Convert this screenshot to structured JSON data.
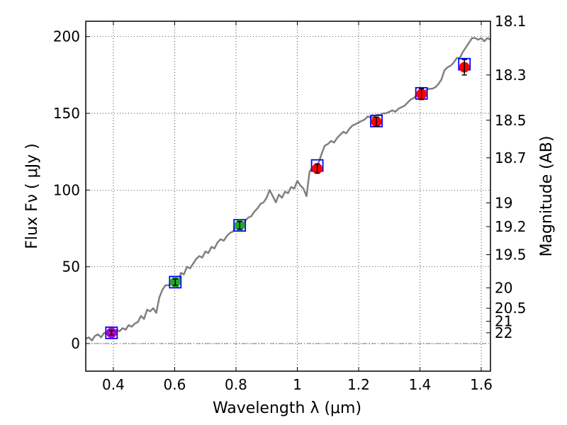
{
  "chart_data": {
    "type": "scatter",
    "title": "",
    "xlabel": "Wavelength  λ (μm)",
    "ylabel": "Flux  Fν  ( μJy )",
    "ylabel_right": "Magnitude (AB)",
    "xlim": [
      0.31,
      1.63
    ],
    "ylim": [
      -18,
      210
    ],
    "grid": true,
    "x_ticks": [
      0.4,
      0.6,
      0.8,
      1.0,
      1.2,
      1.4,
      1.6
    ],
    "x_tick_labels": [
      "0.4",
      "0.6",
      "0.8",
      "1",
      "1.2",
      "1.4",
      "1.6"
    ],
    "y_ticks": [
      0,
      50,
      100,
      150,
      200
    ],
    "y_tick_labels": [
      "0",
      "50",
      "100",
      "150",
      "200"
    ],
    "magnitude_ticks": [
      {
        "label": "18.1",
        "flux": 210
      },
      {
        "label": "18.3",
        "flux": 175
      },
      {
        "label": "18.5",
        "flux": 145.5
      },
      {
        "label": "18.7",
        "flux": 121
      },
      {
        "label": "19",
        "flux": 91.7
      },
      {
        "label": "19.2",
        "flux": 76.2
      },
      {
        "label": "19.5",
        "flux": 57.9
      },
      {
        "label": "20",
        "flux": 36.3
      },
      {
        "label": "20.5",
        "flux": 23
      },
      {
        "label": "21",
        "flux": 14.5
      },
      {
        "label": "22",
        "flux": 7
      }
    ],
    "zero_line": {
      "y": 0,
      "style": "dash-dot"
    },
    "series": [
      {
        "name": "model spectrum",
        "type": "line",
        "color": "#808080",
        "points": [
          [
            0.31,
            3
          ],
          [
            0.32,
            4
          ],
          [
            0.33,
            2
          ],
          [
            0.34,
            5
          ],
          [
            0.35,
            6
          ],
          [
            0.36,
            4
          ],
          [
            0.37,
            7
          ],
          [
            0.38,
            6
          ],
          [
            0.39,
            8
          ],
          [
            0.4,
            7
          ],
          [
            0.41,
            9
          ],
          [
            0.42,
            8
          ],
          [
            0.43,
            10
          ],
          [
            0.44,
            9
          ],
          [
            0.45,
            12
          ],
          [
            0.46,
            11
          ],
          [
            0.47,
            13
          ],
          [
            0.48,
            14
          ],
          [
            0.49,
            18
          ],
          [
            0.5,
            16
          ],
          [
            0.51,
            22
          ],
          [
            0.52,
            21
          ],
          [
            0.53,
            23
          ],
          [
            0.54,
            20
          ],
          [
            0.55,
            30
          ],
          [
            0.56,
            35
          ],
          [
            0.57,
            38
          ],
          [
            0.58,
            38
          ],
          [
            0.59,
            40
          ],
          [
            0.6,
            39
          ],
          [
            0.61,
            37
          ],
          [
            0.62,
            46
          ],
          [
            0.63,
            45
          ],
          [
            0.64,
            50
          ],
          [
            0.65,
            49
          ],
          [
            0.66,
            52
          ],
          [
            0.67,
            55
          ],
          [
            0.68,
            57
          ],
          [
            0.69,
            56
          ],
          [
            0.7,
            60
          ],
          [
            0.71,
            59
          ],
          [
            0.72,
            63
          ],
          [
            0.73,
            62
          ],
          [
            0.74,
            66
          ],
          [
            0.75,
            68
          ],
          [
            0.76,
            67
          ],
          [
            0.77,
            70
          ],
          [
            0.78,
            72
          ],
          [
            0.79,
            73
          ],
          [
            0.8,
            76
          ],
          [
            0.81,
            75
          ],
          [
            0.82,
            77
          ],
          [
            0.83,
            80
          ],
          [
            0.84,
            82
          ],
          [
            0.85,
            83
          ],
          [
            0.86,
            86
          ],
          [
            0.87,
            88
          ],
          [
            0.88,
            91
          ],
          [
            0.89,
            92
          ],
          [
            0.9,
            95
          ],
          [
            0.91,
            100
          ],
          [
            0.92,
            96
          ],
          [
            0.93,
            92
          ],
          [
            0.94,
            97
          ],
          [
            0.95,
            95
          ],
          [
            0.96,
            99
          ],
          [
            0.97,
            98
          ],
          [
            0.98,
            102
          ],
          [
            0.99,
            101
          ],
          [
            1.0,
            106
          ],
          [
            1.01,
            103
          ],
          [
            1.02,
            101
          ],
          [
            1.03,
            96
          ],
          [
            1.04,
            112
          ],
          [
            1.05,
            115
          ],
          [
            1.06,
            116
          ],
          [
            1.07,
            118
          ],
          [
            1.08,
            124
          ],
          [
            1.09,
            129
          ],
          [
            1.1,
            130
          ],
          [
            1.11,
            132
          ],
          [
            1.12,
            131
          ],
          [
            1.13,
            134
          ],
          [
            1.14,
            136
          ],
          [
            1.15,
            138
          ],
          [
            1.16,
            137
          ],
          [
            1.17,
            140
          ],
          [
            1.18,
            142
          ],
          [
            1.19,
            143
          ],
          [
            1.2,
            144
          ],
          [
            1.21,
            145
          ],
          [
            1.22,
            146
          ],
          [
            1.23,
            148
          ],
          [
            1.24,
            147
          ],
          [
            1.25,
            148
          ],
          [
            1.26,
            149
          ],
          [
            1.27,
            149
          ],
          [
            1.28,
            150
          ],
          [
            1.29,
            150
          ],
          [
            1.3,
            151
          ],
          [
            1.31,
            152
          ],
          [
            1.32,
            151
          ],
          [
            1.33,
            153
          ],
          [
            1.34,
            154
          ],
          [
            1.35,
            155
          ],
          [
            1.36,
            157
          ],
          [
            1.37,
            159
          ],
          [
            1.38,
            160
          ],
          [
            1.39,
            162
          ],
          [
            1.4,
            163
          ],
          [
            1.41,
            164
          ],
          [
            1.42,
            165
          ],
          [
            1.43,
            166
          ],
          [
            1.44,
            166
          ],
          [
            1.45,
            167
          ],
          [
            1.46,
            169
          ],
          [
            1.47,
            172
          ],
          [
            1.48,
            178
          ],
          [
            1.49,
            180
          ],
          [
            1.5,
            181
          ],
          [
            1.51,
            183
          ],
          [
            1.52,
            186
          ],
          [
            1.53,
            186
          ],
          [
            1.54,
            190
          ],
          [
            1.55,
            193
          ],
          [
            1.56,
            196
          ],
          [
            1.57,
            199
          ],
          [
            1.58,
            199
          ],
          [
            1.59,
            198
          ],
          [
            1.6,
            199
          ],
          [
            1.61,
            197
          ],
          [
            1.62,
            199
          ],
          [
            1.63,
            198
          ]
        ]
      },
      {
        "name": "photometry",
        "type": "scatter",
        "points": [
          {
            "x": 0.394,
            "y": 7,
            "err": 1.5,
            "color": "#bf00bf"
          },
          {
            "x": 0.602,
            "y": 40,
            "err": 2,
            "color": "#22aa22"
          },
          {
            "x": 0.812,
            "y": 77,
            "err": 2.5,
            "color": "#22aa22"
          },
          {
            "x": 1.065,
            "y": 114,
            "err": 3,
            "color": "#ff0000"
          },
          {
            "x": 1.258,
            "y": 144.5,
            "err": 3,
            "color": "#ff0000"
          },
          {
            "x": 1.405,
            "y": 162.5,
            "err": 3.5,
            "color": "#ff0000"
          },
          {
            "x": 1.545,
            "y": 180,
            "err": 5,
            "color": "#ff0000"
          }
        ]
      },
      {
        "name": "model photometry",
        "type": "scatter",
        "marker": "square",
        "color": "#0000ff",
        "points": [
          {
            "x": 0.394,
            "y": 7
          },
          {
            "x": 0.602,
            "y": 40
          },
          {
            "x": 0.812,
            "y": 77
          },
          {
            "x": 1.065,
            "y": 116
          },
          {
            "x": 1.258,
            "y": 145
          },
          {
            "x": 1.405,
            "y": 163
          },
          {
            "x": 1.545,
            "y": 182
          }
        ]
      }
    ]
  }
}
